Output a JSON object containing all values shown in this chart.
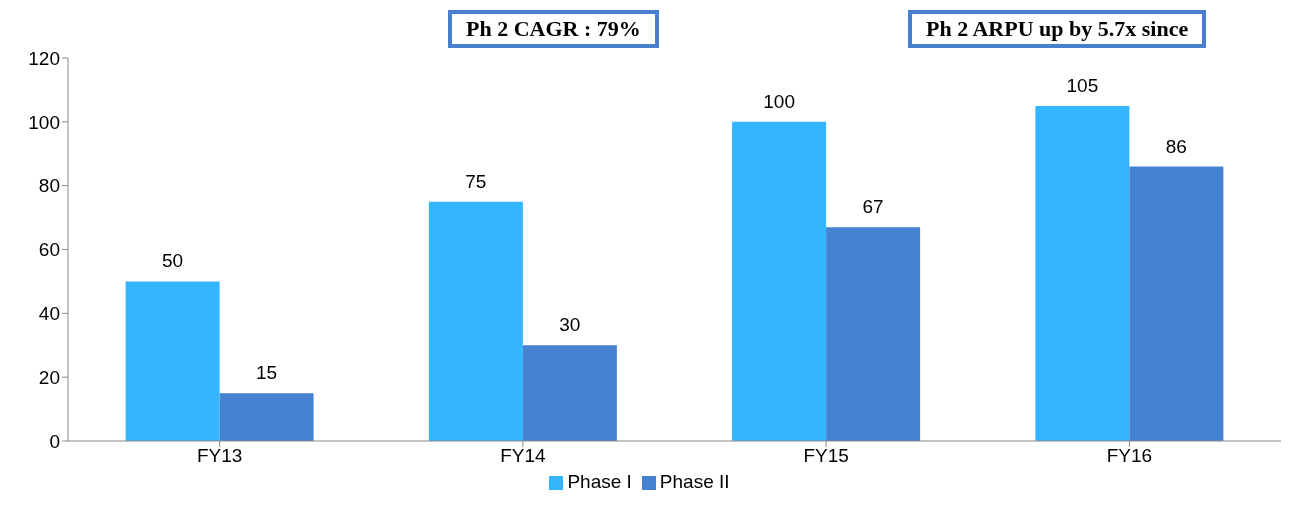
{
  "chart_data": {
    "type": "bar",
    "categories": [
      "FY13",
      "FY14",
      "FY15",
      "FY16"
    ],
    "series": [
      {
        "name": "Phase I",
        "color": "#33b5ff",
        "values": [
          50,
          75,
          100,
          105
        ]
      },
      {
        "name": "Phase II",
        "color": "#4682d2",
        "values": [
          15,
          30,
          67,
          86
        ]
      }
    ],
    "ylim": [
      0,
      120
    ],
    "yticks": [
      0,
      20,
      40,
      60,
      80,
      100,
      120
    ],
    "grid": false,
    "legend": "bottom",
    "data_labels": true,
    "annotations": [
      "Ph 2 CAGR : 79%",
      "Ph 2 ARPU up by 5.7x since"
    ]
  }
}
